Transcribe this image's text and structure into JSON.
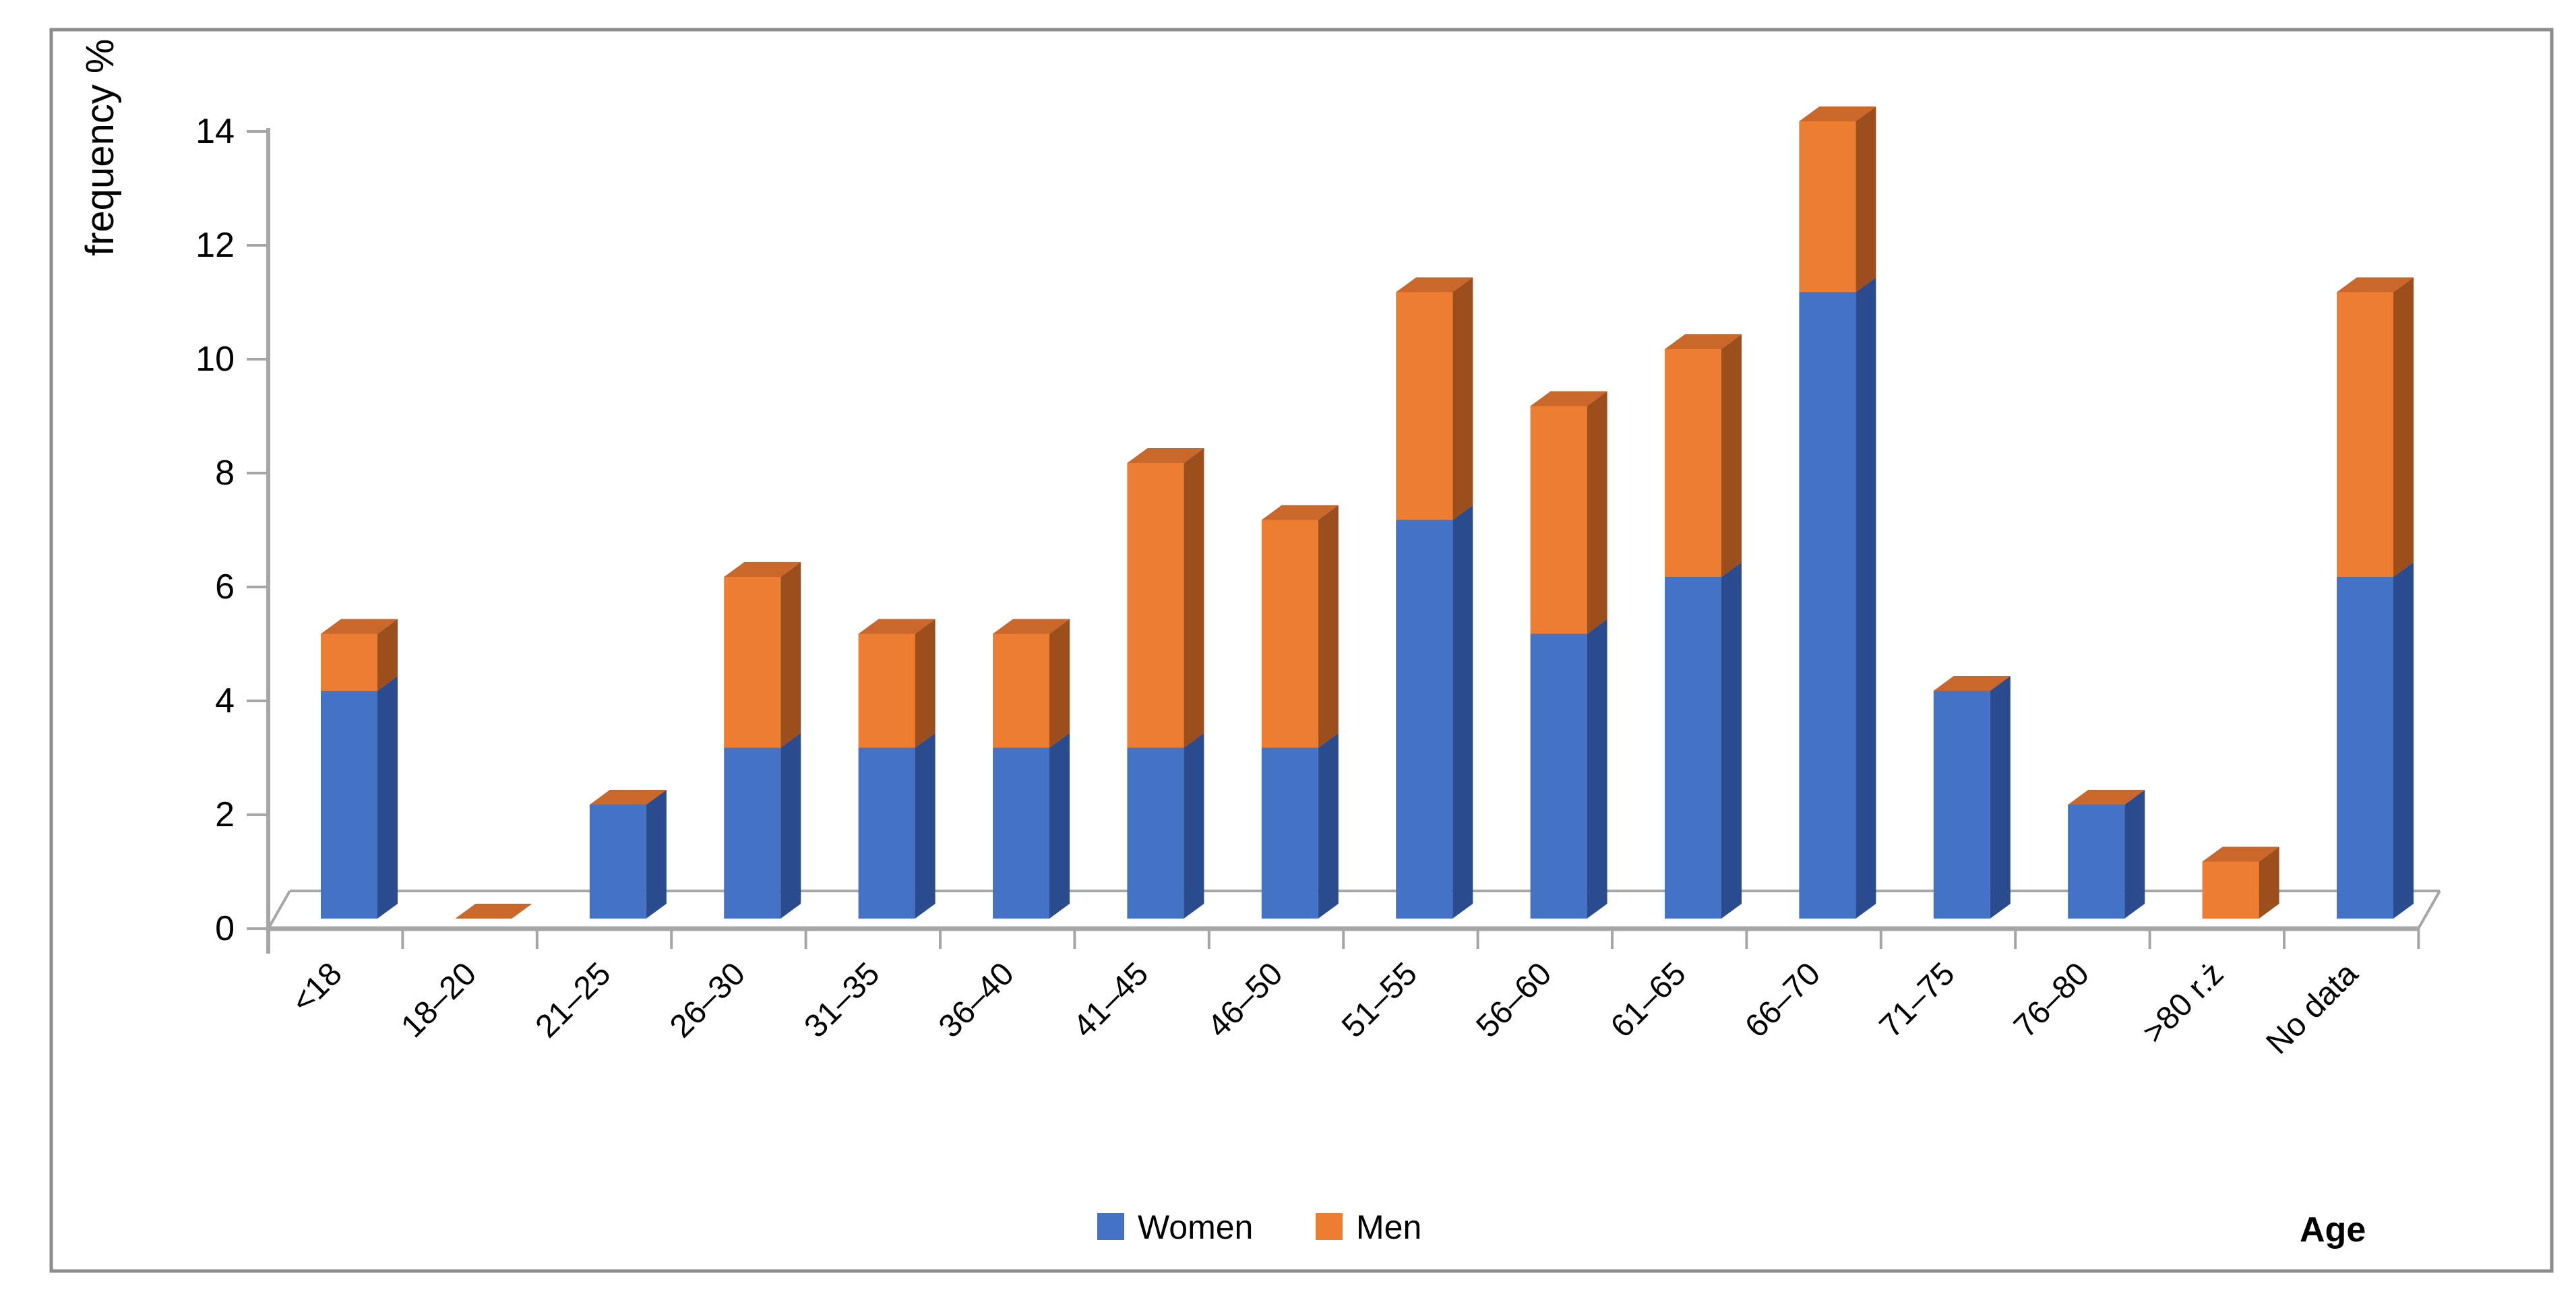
{
  "chart_data": {
    "type": "bar",
    "variant": "3d-stacked-column",
    "title": "",
    "ylabel": "frequency %",
    "xlabel": "Age",
    "ylim": [
      0,
      14
    ],
    "ytick_step": 2,
    "yticks": [
      0,
      2,
      4,
      6,
      8,
      10,
      12,
      14
    ],
    "grid": false,
    "legend_position": "bottom-center",
    "categories": [
      "<18",
      "18–20",
      "21–25",
      "26–30",
      "31–35",
      "36–40",
      "41–45",
      "46–50",
      "51–55",
      "56–60",
      "61–65",
      "66–70",
      "71–75",
      "76–80",
      ">80 r.ż",
      "No data"
    ],
    "series": [
      {
        "name": "Women",
        "color": "#4472C4",
        "side_color": "#2A4B8D",
        "values": [
          4,
          0,
          2,
          3,
          3,
          3,
          3,
          3,
          7,
          5,
          6,
          11,
          4,
          2,
          0,
          6
        ]
      },
      {
        "name": "Men",
        "color": "#ED7D31",
        "side_color": "#9C4E1D",
        "top_color": "#C9682A",
        "values": [
          1,
          0,
          0,
          3,
          2,
          2,
          5,
          4,
          4,
          4,
          4,
          3,
          0,
          0,
          1,
          5
        ]
      }
    ]
  },
  "colors": {
    "axis": "#A6A6A6",
    "border": "#8C8C8C",
    "text": "#000000",
    "background": "#FFFFFF"
  }
}
